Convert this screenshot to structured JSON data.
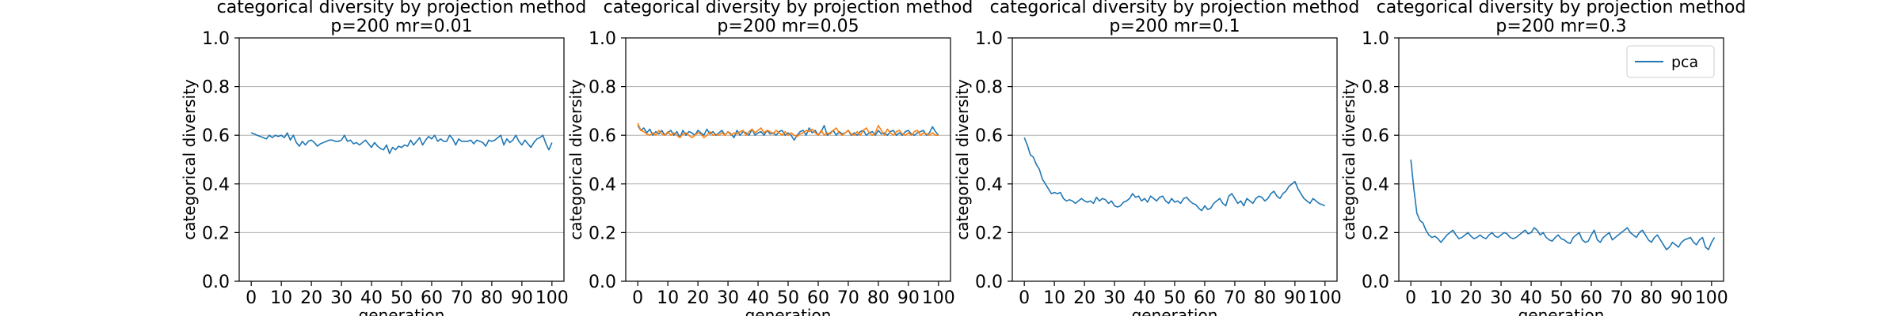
{
  "figure": {
    "colors": {
      "pca": "#1f77b4",
      "other": "#ff7f0e",
      "grid": "#b0b0b0"
    },
    "legend": {
      "placement": "upper right",
      "label": "pca"
    }
  },
  "chart_data": [
    {
      "type": "line",
      "title": "categorical diversity by projection method",
      "subtitle": "p=200 mr=0.01",
      "xlabel": "generation",
      "ylabel": "categorical diversity",
      "xlim": [
        -4,
        104
      ],
      "ylim": [
        0.0,
        1.0
      ],
      "xticks": [
        0,
        10,
        20,
        30,
        40,
        50,
        60,
        70,
        80,
        90,
        100
      ],
      "yticks": [
        "0.0",
        "0.2",
        "0.4",
        "0.6",
        "0.8",
        "1.0"
      ],
      "grid": "y-axis only",
      "series": [
        {
          "color": "#1f77b4",
          "x_start": 0,
          "x_step": 1,
          "values": [
            0.61,
            0.605,
            0.6,
            0.595,
            0.59,
            0.585,
            0.6,
            0.59,
            0.6,
            0.595,
            0.6,
            0.59,
            0.61,
            0.58,
            0.6,
            0.57,
            0.555,
            0.575,
            0.56,
            0.575,
            0.58,
            0.57,
            0.555,
            0.565,
            0.57,
            0.575,
            0.58,
            0.58,
            0.575,
            0.575,
            0.58,
            0.6,
            0.575,
            0.58,
            0.565,
            0.57,
            0.56,
            0.57,
            0.58,
            0.565,
            0.55,
            0.57,
            0.555,
            0.545,
            0.54,
            0.56,
            0.525,
            0.55,
            0.54,
            0.555,
            0.55,
            0.56,
            0.555,
            0.58,
            0.56,
            0.575,
            0.59,
            0.56,
            0.58,
            0.595,
            0.585,
            0.6,
            0.575,
            0.585,
            0.575,
            0.575,
            0.6,
            0.585,
            0.56,
            0.585,
            0.575,
            0.575,
            0.575,
            0.58,
            0.565,
            0.58,
            0.575,
            0.57,
            0.555,
            0.58,
            0.575,
            0.58,
            0.59,
            0.6,
            0.56,
            0.585,
            0.57,
            0.58,
            0.6,
            0.575,
            0.56,
            0.58,
            0.565,
            0.55,
            0.57,
            0.585,
            0.59,
            0.6,
            0.565,
            0.54,
            0.57
          ]
        }
      ]
    },
    {
      "type": "line",
      "title": "categorical diversity by projection method",
      "subtitle": "p=200 mr=0.05",
      "xlabel": "generation",
      "ylabel": "categorical diversity",
      "xlim": [
        -4,
        104
      ],
      "ylim": [
        0.0,
        1.0
      ],
      "xticks": [
        0,
        10,
        20,
        30,
        40,
        50,
        60,
        70,
        80,
        90,
        100
      ],
      "yticks": [
        "0.0",
        "0.2",
        "0.4",
        "0.6",
        "0.8",
        "1.0"
      ],
      "grid": "y-axis only",
      "series": [
        {
          "color": "#1f77b4",
          "x_start": 0,
          "x_step": 1,
          "values": [
            0.64,
            0.62,
            0.63,
            0.61,
            0.625,
            0.6,
            0.615,
            0.605,
            0.62,
            0.6,
            0.61,
            0.62,
            0.6,
            0.615,
            0.59,
            0.62,
            0.6,
            0.615,
            0.61,
            0.6,
            0.62,
            0.61,
            0.6,
            0.625,
            0.605,
            0.615,
            0.6,
            0.61,
            0.62,
            0.6,
            0.615,
            0.605,
            0.59,
            0.62,
            0.6,
            0.615,
            0.61,
            0.6,
            0.625,
            0.6,
            0.61,
            0.615,
            0.6,
            0.62,
            0.605,
            0.61,
            0.6,
            0.615,
            0.62,
            0.6,
            0.61,
            0.6,
            0.58,
            0.6,
            0.615,
            0.62,
            0.6,
            0.63,
            0.61,
            0.62,
            0.6,
            0.615,
            0.64,
            0.6,
            0.61,
            0.62,
            0.6,
            0.615,
            0.605,
            0.61,
            0.62,
            0.6,
            0.61,
            0.6,
            0.615,
            0.62,
            0.6,
            0.61,
            0.615,
            0.6,
            0.62,
            0.605,
            0.61,
            0.6,
            0.615,
            0.62,
            0.6,
            0.61,
            0.6,
            0.615,
            0.62,
            0.605,
            0.6,
            0.61,
            0.615,
            0.62,
            0.6,
            0.61,
            0.635,
            0.615,
            0.6
          ]
        },
        {
          "color": "#ff7f0e",
          "x_start": 0,
          "x_step": 1,
          "values": [
            0.65,
            0.62,
            0.615,
            0.605,
            0.6,
            0.61,
            0.6,
            0.62,
            0.605,
            0.6,
            0.615,
            0.6,
            0.61,
            0.6,
            0.59,
            0.605,
            0.61,
            0.6,
            0.59,
            0.6,
            0.61,
            0.605,
            0.59,
            0.6,
            0.615,
            0.6,
            0.605,
            0.6,
            0.61,
            0.6,
            0.615,
            0.6,
            0.61,
            0.605,
            0.615,
            0.62,
            0.6,
            0.615,
            0.625,
            0.61,
            0.62,
            0.63,
            0.61,
            0.62,
            0.615,
            0.605,
            0.62,
            0.61,
            0.6,
            0.615,
            0.6,
            0.61,
            0.6,
            0.595,
            0.605,
            0.61,
            0.62,
            0.615,
            0.625,
            0.61,
            0.6,
            0.62,
            0.6,
            0.61,
            0.605,
            0.62,
            0.63,
            0.61,
            0.6,
            0.61,
            0.62,
            0.605,
            0.6,
            0.615,
            0.6,
            0.62,
            0.63,
            0.61,
            0.6,
            0.61,
            0.64,
            0.62,
            0.6,
            0.625,
            0.61,
            0.6,
            0.615,
            0.62,
            0.605,
            0.6,
            0.61,
            0.6,
            0.615,
            0.62,
            0.6,
            0.61,
            0.605,
            0.6,
            0.61,
            0.6,
            0.6
          ]
        }
      ]
    },
    {
      "type": "line",
      "title": "categorical diversity by projection method",
      "subtitle": "p=200 mr=0.1",
      "xlabel": "generation",
      "ylabel": "categorical diversity",
      "xlim": [
        -4,
        104
      ],
      "ylim": [
        0.0,
        1.0
      ],
      "xticks": [
        0,
        10,
        20,
        30,
        40,
        50,
        60,
        70,
        80,
        90,
        100
      ],
      "yticks": [
        "0.0",
        "0.2",
        "0.4",
        "0.6",
        "0.8",
        "1.0"
      ],
      "grid": "y-axis only",
      "series": [
        {
          "color": "#1f77b4",
          "x_start": 0,
          "x_step": 1,
          "values": [
            0.59,
            0.56,
            0.52,
            0.51,
            0.48,
            0.46,
            0.42,
            0.4,
            0.38,
            0.36,
            0.365,
            0.36,
            0.365,
            0.34,
            0.33,
            0.335,
            0.33,
            0.32,
            0.33,
            0.34,
            0.33,
            0.325,
            0.33,
            0.32,
            0.345,
            0.33,
            0.34,
            0.335,
            0.32,
            0.33,
            0.31,
            0.305,
            0.31,
            0.325,
            0.33,
            0.34,
            0.36,
            0.345,
            0.35,
            0.33,
            0.34,
            0.325,
            0.35,
            0.34,
            0.33,
            0.345,
            0.35,
            0.33,
            0.32,
            0.34,
            0.325,
            0.33,
            0.32,
            0.34,
            0.345,
            0.33,
            0.32,
            0.315,
            0.3,
            0.29,
            0.31,
            0.295,
            0.3,
            0.32,
            0.33,
            0.34,
            0.32,
            0.31,
            0.35,
            0.36,
            0.34,
            0.32,
            0.33,
            0.31,
            0.34,
            0.33,
            0.32,
            0.34,
            0.35,
            0.345,
            0.33,
            0.34,
            0.36,
            0.37,
            0.35,
            0.34,
            0.36,
            0.37,
            0.39,
            0.4,
            0.41,
            0.38,
            0.36,
            0.34,
            0.33,
            0.32,
            0.34,
            0.33,
            0.32,
            0.315,
            0.31
          ]
        }
      ]
    },
    {
      "type": "line",
      "title": "categorical diversity by projection method",
      "subtitle": "p=200 mr=0.3",
      "xlabel": "generation",
      "ylabel": "categorical diversity",
      "xlim": [
        -4,
        104
      ],
      "ylim": [
        0.0,
        1.0
      ],
      "xticks": [
        0,
        10,
        20,
        30,
        40,
        50,
        60,
        70,
        80,
        90,
        100
      ],
      "yticks": [
        "0.0",
        "0.2",
        "0.4",
        "0.6",
        "0.8",
        "1.0"
      ],
      "grid": "y-axis only",
      "legend": "pca",
      "series": [
        {
          "name": "pca",
          "color": "#1f77b4",
          "x_start": 0,
          "x_step": 1,
          "values": [
            0.5,
            0.38,
            0.28,
            0.25,
            0.24,
            0.21,
            0.19,
            0.18,
            0.185,
            0.175,
            0.16,
            0.175,
            0.19,
            0.2,
            0.21,
            0.19,
            0.175,
            0.18,
            0.19,
            0.2,
            0.185,
            0.175,
            0.18,
            0.19,
            0.18,
            0.175,
            0.19,
            0.2,
            0.185,
            0.18,
            0.19,
            0.2,
            0.195,
            0.18,
            0.175,
            0.18,
            0.19,
            0.2,
            0.21,
            0.195,
            0.2,
            0.22,
            0.21,
            0.19,
            0.2,
            0.18,
            0.17,
            0.165,
            0.18,
            0.19,
            0.175,
            0.17,
            0.16,
            0.155,
            0.18,
            0.19,
            0.2,
            0.17,
            0.16,
            0.165,
            0.19,
            0.21,
            0.17,
            0.16,
            0.18,
            0.19,
            0.2,
            0.17,
            0.18,
            0.19,
            0.2,
            0.21,
            0.22,
            0.2,
            0.19,
            0.18,
            0.2,
            0.21,
            0.19,
            0.17,
            0.16,
            0.18,
            0.19,
            0.17,
            0.15,
            0.13,
            0.14,
            0.16,
            0.15,
            0.14,
            0.16,
            0.17,
            0.175,
            0.18,
            0.16,
            0.15,
            0.17,
            0.18,
            0.14,
            0.13,
            0.16,
            0.18
          ]
        }
      ]
    }
  ]
}
